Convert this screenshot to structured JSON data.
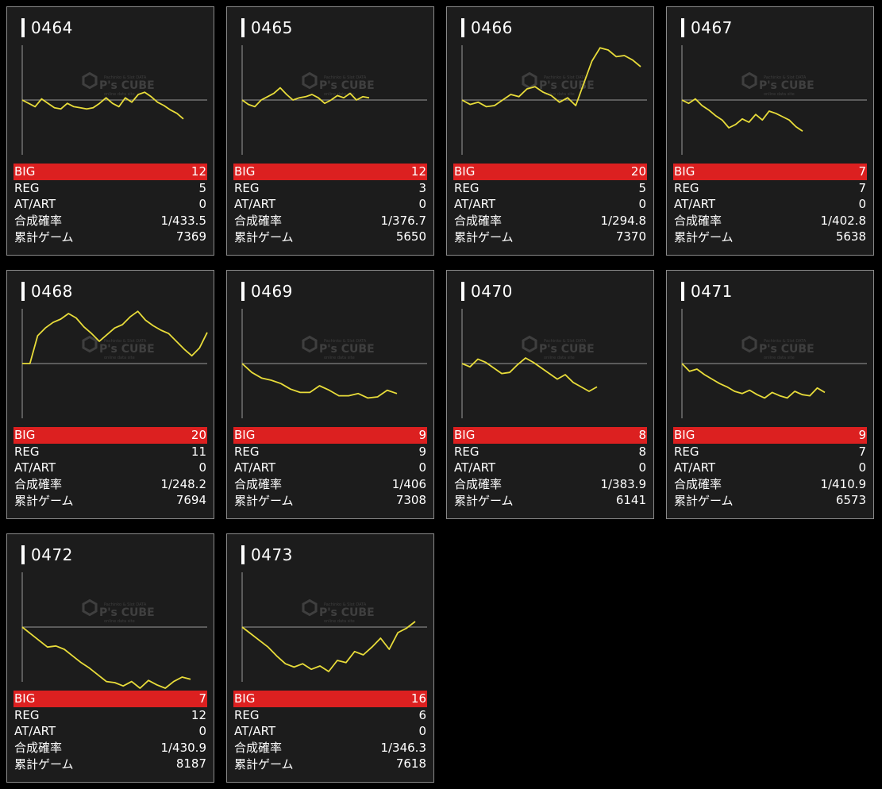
{
  "colors": {
    "background": "#000000",
    "card_background": "#1c1c1c",
    "card_border": "#8a8a8a",
    "big_row": "#dc2020",
    "graph_line": "#e8dc3a",
    "axis": "#9a9a9a"
  },
  "watermark": {
    "logo_text": "P's CUBE",
    "sub_text_top": "Pachinko & Slot DATA",
    "sub_text_bottom": "online data site"
  },
  "stat_labels": {
    "big": "BIG",
    "reg": "REG",
    "atart": "AT/ART",
    "prob": "合成確率",
    "games": "累計ゲーム"
  },
  "machines": [
    {
      "id": "0464",
      "big": "12",
      "reg": "5",
      "atart": "0",
      "prob": "1/433.5",
      "games": "7369",
      "graph_values": [
        0,
        -3,
        -6,
        1,
        -3,
        -7,
        -8,
        -3,
        -6,
        -7,
        -8,
        -7,
        -3,
        2,
        -3,
        -6,
        2,
        -2,
        5,
        7,
        3,
        -2,
        -5,
        -9,
        -12,
        -17
      ]
    },
    {
      "id": "0465",
      "big": "12",
      "reg": "3",
      "atart": "0",
      "prob": "1/376.7",
      "games": "5650",
      "graph_values": [
        0,
        -4,
        -6,
        0,
        3,
        6,
        11,
        5,
        0,
        2,
        3,
        5,
        2,
        -3,
        0,
        4,
        2,
        6,
        0,
        3,
        2
      ]
    },
    {
      "id": "0466",
      "big": "20",
      "reg": "5",
      "atart": "0",
      "prob": "1/294.8",
      "games": "7370",
      "graph_values": [
        0,
        -4,
        -2,
        -6,
        -5,
        0,
        5,
        3,
        10,
        12,
        7,
        4,
        -2,
        2,
        -5,
        15,
        35,
        47,
        45,
        39,
        40,
        36,
        30
      ]
    },
    {
      "id": "0467",
      "big": "7",
      "reg": "7",
      "atart": "0",
      "prob": "1/402.8",
      "games": "5638",
      "graph_values": [
        0,
        -3,
        1,
        -5,
        -9,
        -14,
        -18,
        -25,
        -22,
        -17,
        -20,
        -13,
        -18,
        -10,
        -12,
        -15,
        -18,
        -24,
        -28
      ]
    },
    {
      "id": "0468",
      "big": "20",
      "reg": "11",
      "atart": "0",
      "prob": "1/248.2",
      "games": "7694",
      "graph_values": [
        0,
        0,
        25,
        32,
        37,
        40,
        45,
        41,
        33,
        27,
        20,
        26,
        32,
        35,
        42,
        47,
        39,
        34,
        30,
        27,
        20,
        13,
        7,
        14,
        28
      ]
    },
    {
      "id": "0469",
      "big": "9",
      "reg": "9",
      "atart": "0",
      "prob": "1/406",
      "games": "7308",
      "graph_values": [
        0,
        -8,
        -13,
        -15,
        -18,
        -23,
        -26,
        -26,
        -20,
        -24,
        -29,
        -29,
        -27,
        -31,
        -30,
        -24,
        -27
      ]
    },
    {
      "id": "0470",
      "big": "8",
      "reg": "8",
      "atart": "0",
      "prob": "1/383.9",
      "games": "6141",
      "graph_values": [
        0,
        -3,
        4,
        1,
        -4,
        -9,
        -8,
        -1,
        5,
        1,
        -4,
        -9,
        -14,
        -10,
        -17,
        -21,
        -25,
        -21
      ]
    },
    {
      "id": "0471",
      "big": "9",
      "reg": "7",
      "atart": "0",
      "prob": "1/410.9",
      "games": "6573",
      "graph_values": [
        0,
        -7,
        -5,
        -10,
        -14,
        -18,
        -21,
        -25,
        -27,
        -24,
        -28,
        -31,
        -26,
        -29,
        -31,
        -25,
        -28,
        -29,
        -22,
        -26
      ]
    },
    {
      "id": "0472",
      "big": "7",
      "reg": "12",
      "atart": "0",
      "prob": "1/430.9",
      "games": "8187",
      "graph_values": [
        0,
        -6,
        -12,
        -18,
        -17,
        -20,
        -26,
        -32,
        -37,
        -43,
        -49,
        -50,
        -53,
        -49,
        -55,
        -48,
        -52,
        -55,
        -49,
        -45,
        -47
      ]
    },
    {
      "id": "0473",
      "big": "16",
      "reg": "6",
      "atart": "0",
      "prob": "1/346.3",
      "games": "7618",
      "graph_values": [
        0,
        -6,
        -12,
        -18,
        -26,
        -33,
        -36,
        -33,
        -38,
        -35,
        -40,
        -30,
        -32,
        -22,
        -25,
        -18,
        -10,
        -20,
        -5,
        -1,
        5
      ]
    }
  ]
}
